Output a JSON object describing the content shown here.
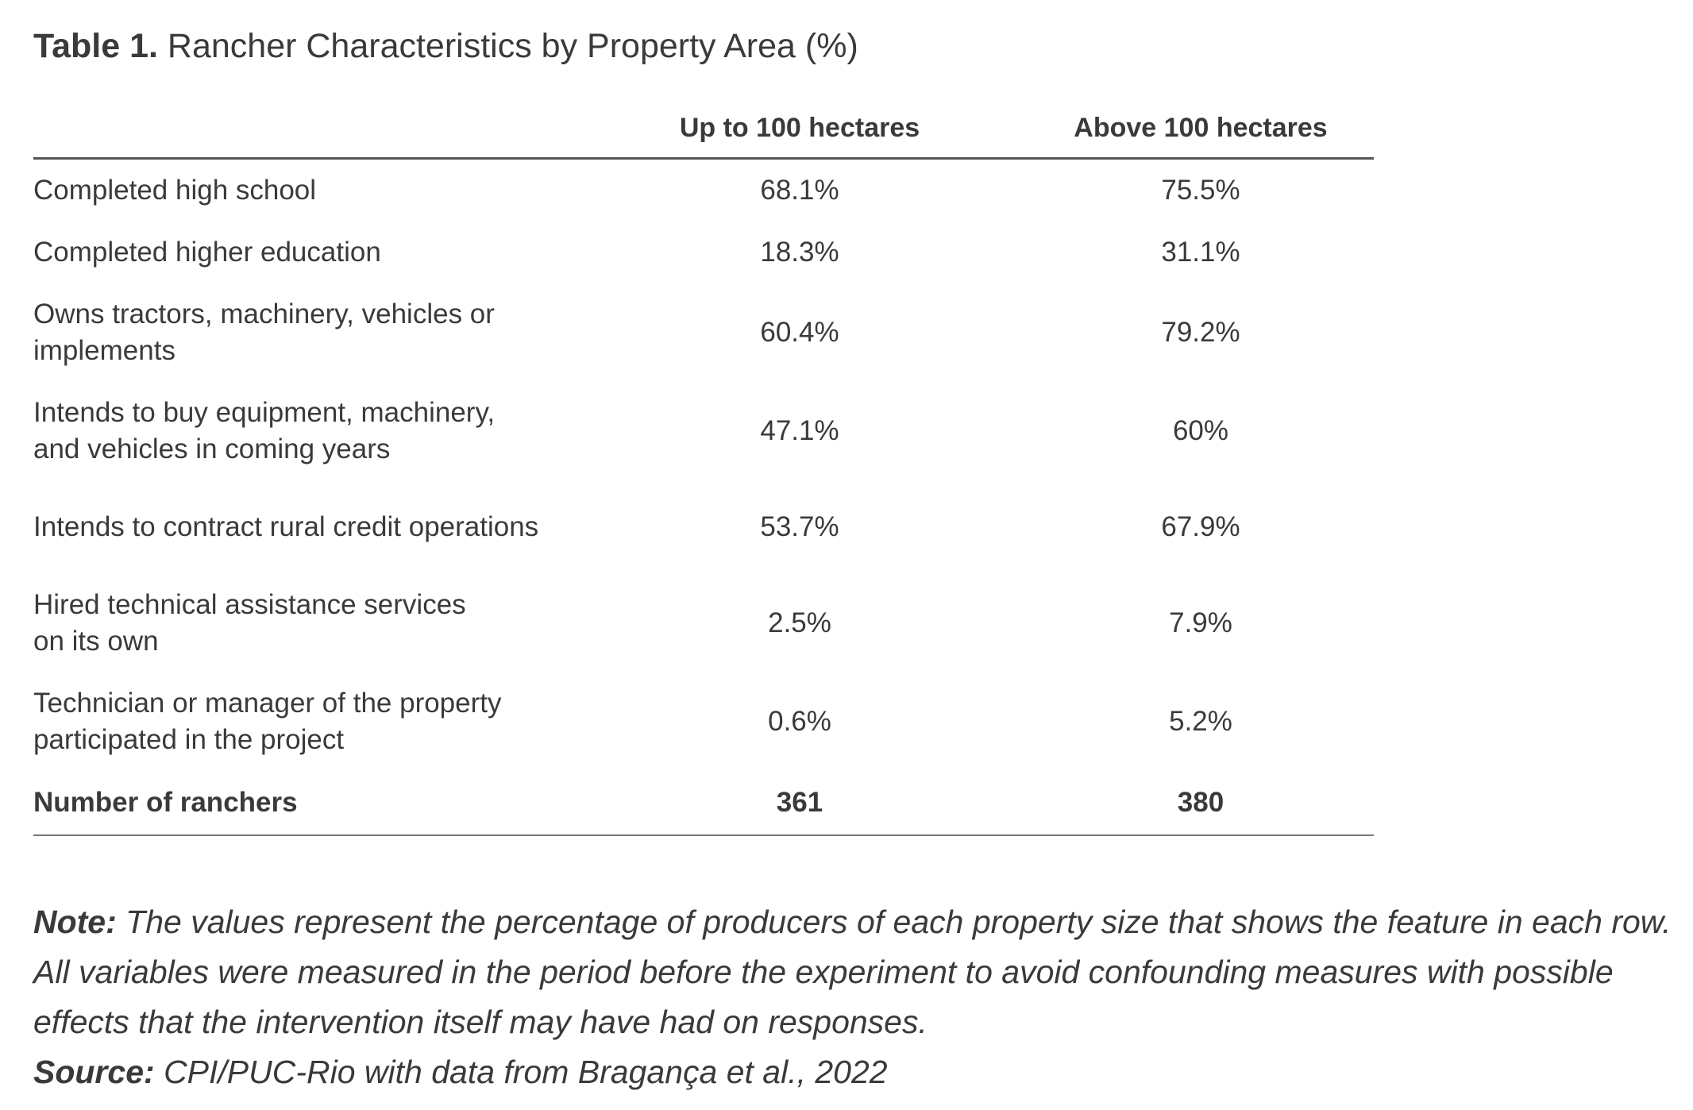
{
  "title": {
    "label": "Table 1.",
    "text": "Rancher Characteristics by Property Area (%)"
  },
  "table": {
    "columns": [
      "Up to 100 hectares",
      "Above 100 hectares"
    ],
    "rows": [
      {
        "label_lines": [
          "Completed high school"
        ],
        "values": [
          "68.1%",
          "75.5%"
        ]
      },
      {
        "label_lines": [
          "Completed higher education"
        ],
        "values": [
          "18.3%",
          "31.1%"
        ]
      },
      {
        "label_lines": [
          "Owns tractors, machinery, vehicles or",
          "implements"
        ],
        "values": [
          "60.4%",
          "79.2%"
        ]
      },
      {
        "label_lines": [
          "Intends to buy equipment, machinery,",
          "and vehicles in coming years"
        ],
        "values": [
          "47.1%",
          "60%"
        ]
      },
      {
        "label_lines": [
          "Intends to contract rural credit operations"
        ],
        "values": [
          "53.7%",
          "67.9%"
        ]
      },
      {
        "label_lines": [
          "Hired technical assistance services",
          "on its own"
        ],
        "values": [
          "2.5%",
          "7.9%"
        ]
      },
      {
        "label_lines": [
          "Technician or manager of the property",
          "participated in the project"
        ],
        "values": [
          "0.6%",
          "5.2%"
        ]
      }
    ],
    "total": {
      "label": "Number of ranchers",
      "values": [
        "361",
        "380"
      ]
    }
  },
  "note": {
    "label": "Note:",
    "text": "The values represent the percentage of producers of each property size that shows the feature in each row. All variables were measured in the period before the experiment to avoid confounding measures with possible effects that the intervention itself may have had on responses."
  },
  "source": {
    "label": "Source:",
    "text": "CPI/PUC-Rio with data from Bragança et al., 2022"
  }
}
